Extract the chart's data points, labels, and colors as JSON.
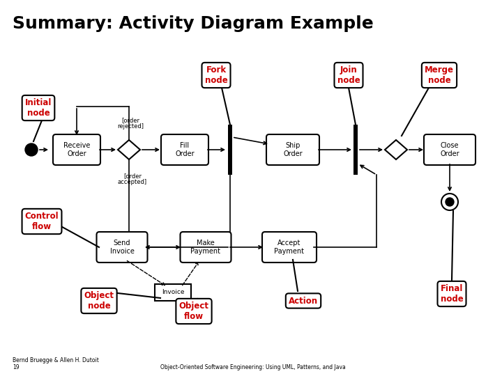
{
  "title": "Summary: Activity Diagram Example",
  "title_fontsize": 18,
  "background_color": "#ffffff",
  "diagram_color": "#000000",
  "label_color": "#cc0000",
  "footer_left": "Bernd Bruegge & Allen H. Dutoit\n19",
  "footer_right": "Object-Oriented Software Engineering: Using UML, Patterns, and Java",
  "labels": {
    "fork_node": "Fork\nnode",
    "join_node": "Join\nnode",
    "merge_node": "Merge\nnode",
    "initial_node": "Initial\nnode",
    "control_flow": "Control\nflow",
    "object_node": "Object\nnode",
    "object_flow": "Object\nflow",
    "action": "Action",
    "final_node": "Final\nnode"
  },
  "actions": {
    "receive_order": "Receive\nOrder",
    "fill_order": "Fill\nOrder",
    "ship_order": "Ship\nOrder",
    "close_order": "Close\nOrder",
    "send_invoice": "Send\nInvoice",
    "make_payment": "Make\nPayment",
    "accept_payment": "Accept\nPayment",
    "invoice": "Invoice"
  },
  "guard_rejected": "[order\nrejected]",
  "guard_accepted": "[order\naccepted]"
}
